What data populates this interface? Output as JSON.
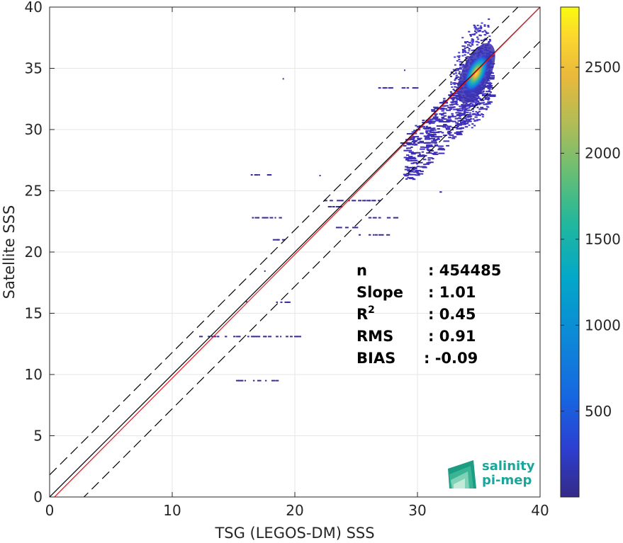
{
  "chart_data": {
    "type": "heatmap",
    "title": "",
    "xlabel": "TSG (LEGOS-DM) SSS",
    "ylabel": "Satellite SSS",
    "xlim": [
      0,
      40
    ],
    "ylim": [
      0,
      40
    ],
    "xticks": [
      "0",
      "10",
      "20",
      "30",
      "40"
    ],
    "yticks": [
      "0",
      "5",
      "10",
      "15",
      "20",
      "25",
      "30",
      "35",
      "40"
    ],
    "grid": true,
    "colorbar": {
      "range": [
        1,
        2850
      ],
      "ticks": [
        "500",
        "1000",
        "1500",
        "2000",
        "2500"
      ],
      "colormap": "parula"
    },
    "reference_lines": [
      {
        "name": "1:1",
        "slope": 1,
        "intercept": 0,
        "color": "#000000",
        "style": "solid"
      },
      {
        "name": "regression",
        "slope": 1.01,
        "intercept": -0.4,
        "color": "#e8141c",
        "style": "solid"
      },
      {
        "name": "upper",
        "slope": 1,
        "intercept": 1.8,
        "color": "#000000",
        "style": "dashed"
      },
      {
        "name": "lower",
        "slope": 1,
        "intercept": -2.8,
        "color": "#000000",
        "style": "dashed"
      }
    ],
    "stats": [
      {
        "label": "n",
        "sup": "",
        "value": ": 454485"
      },
      {
        "label": "Slope",
        "sup": "",
        "value": ": 1.01"
      },
      {
        "label": "R",
        "sup": "2",
        "value": ": 0.45"
      },
      {
        "label": "RMS",
        "sup": "",
        "value": ": 0.91"
      },
      {
        "label": "BIAS",
        "sup": "",
        "value": ": -0.09"
      }
    ],
    "density_core": {
      "x": 34.8,
      "y": 34.6,
      "peak": 2850
    },
    "sparse_streaks": [
      {
        "x": [
          12.2,
          20.6
        ],
        "y": 13.1
      },
      {
        "x": [
          15.2,
          18.6
        ],
        "y": 9.5
      },
      {
        "x": [
          17.6,
          20.0
        ],
        "y": 15.9
      },
      {
        "x": [
          18.2,
          20.3
        ],
        "y": 21.0
      },
      {
        "x": [
          16.4,
          18.8
        ],
        "y": 26.3
      },
      {
        "x": [
          16.5,
          18.9
        ],
        "y": 22.8
      },
      {
        "x": [
          22.2,
          26.8
        ],
        "y": 24.2
      },
      {
        "x": [
          26.0,
          28.5
        ],
        "y": 22.8
      },
      {
        "x": [
          22.7,
          24.2
        ],
        "y": 23.7
      },
      {
        "x": [
          23.0,
          25.0
        ],
        "y": 22.0
      },
      {
        "x": [
          25.2,
          27.5
        ],
        "y": 21.4
      },
      {
        "x": [
          26.8,
          30.5
        ],
        "y": 33.4
      },
      {
        "x": [
          28.6,
          31.5
        ],
        "y": 28.9
      },
      {
        "x": [
          31.8,
          32.2
        ],
        "y": 24.9
      }
    ]
  },
  "logo": {
    "line1": "salinity",
    "line2": "pi-mep"
  }
}
